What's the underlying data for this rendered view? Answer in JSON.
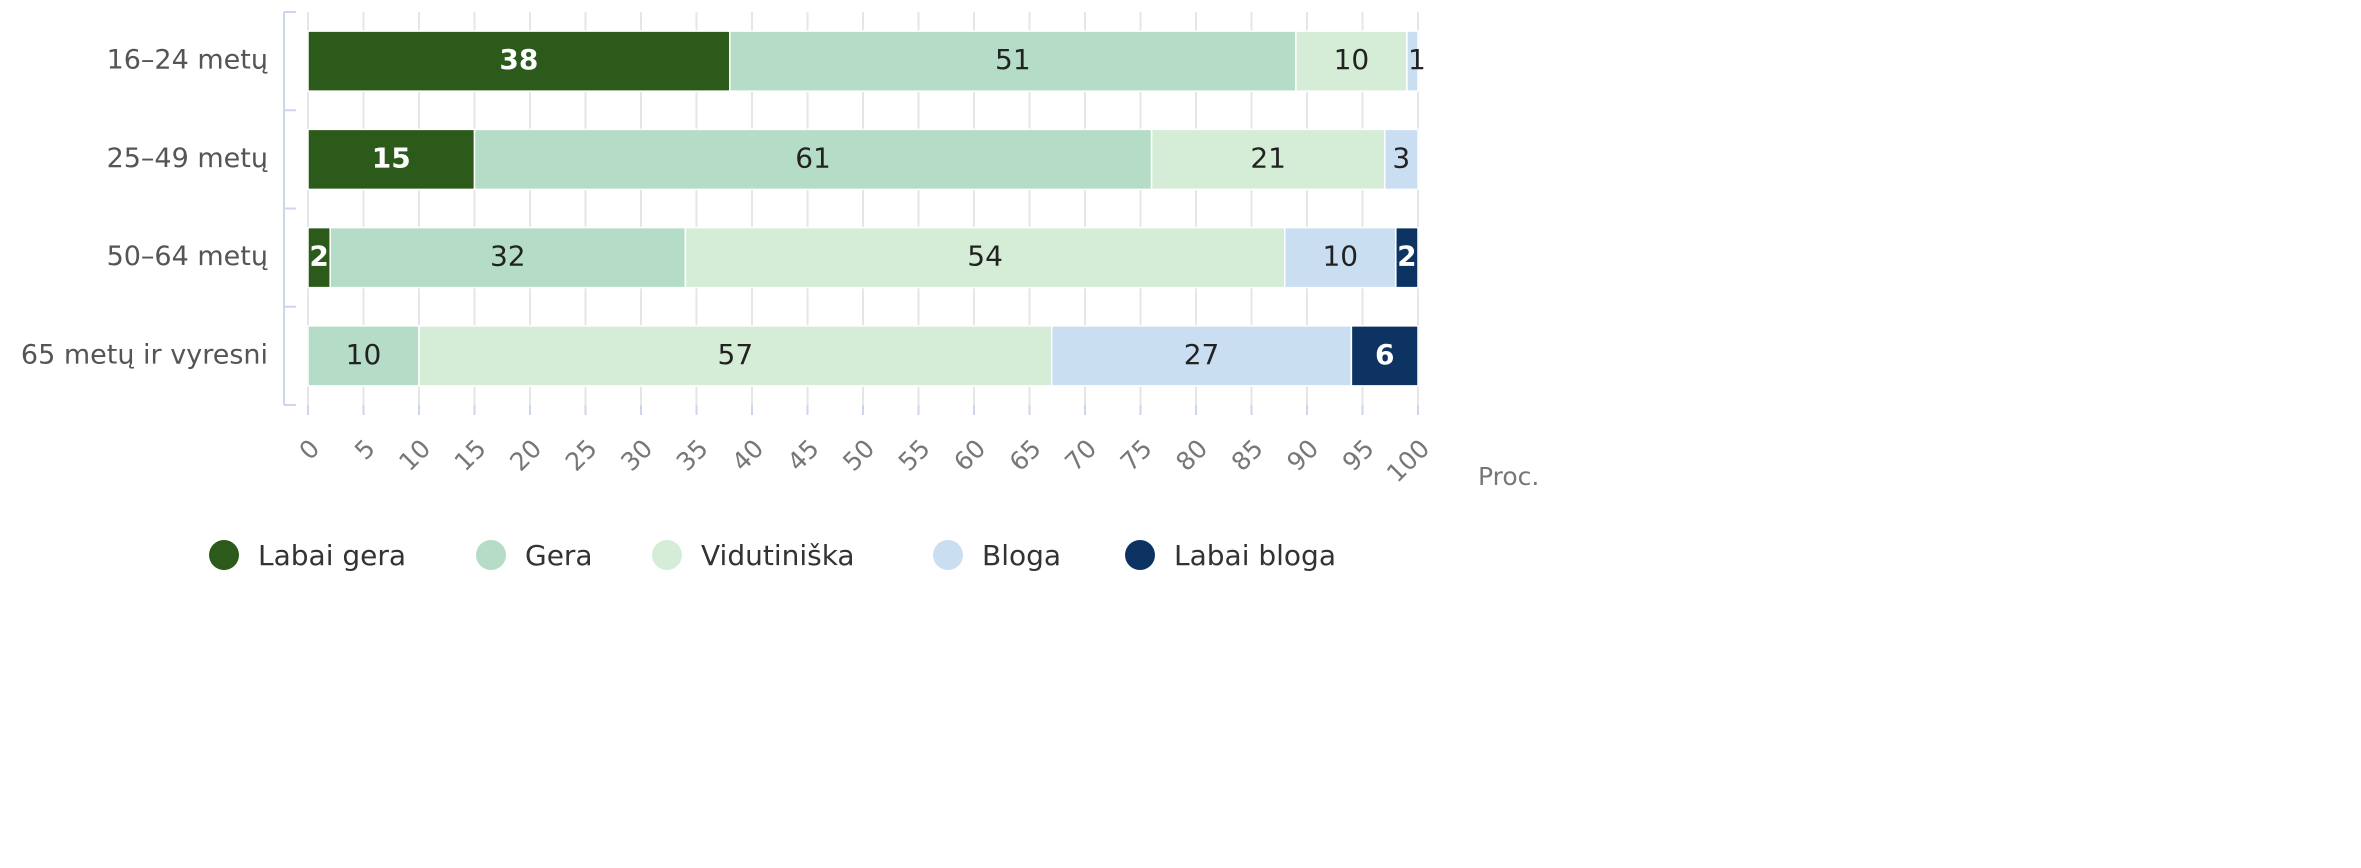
{
  "chart_data": {
    "type": "stacked-bar-horizontal",
    "categories": [
      "16–24 metų",
      "25–49 metų",
      "50–64 metų",
      "65 metų ir vyresni"
    ],
    "series": [
      {
        "name": "Labai gera",
        "color": "#2b5a1a",
        "values": [
          38,
          15,
          2,
          0
        ]
      },
      {
        "name": "Gera",
        "color": "#b4dcc6",
        "values": [
          51,
          61,
          32,
          10
        ]
      },
      {
        "name": "Vidutiniška",
        "color": "#d5edd6",
        "values": [
          10,
          21,
          54,
          57
        ]
      },
      {
        "name": "Bloga",
        "color": "#cadef1",
        "values": [
          1,
          3,
          10,
          27
        ]
      },
      {
        "name": "Labai bloga",
        "color": "#0c3361",
        "values": [
          null,
          null,
          2,
          6
        ]
      }
    ],
    "xlabel": "Proc.",
    "xlim": [
      0,
      100
    ],
    "xticks": [
      0,
      5,
      10,
      15,
      20,
      25,
      30,
      35,
      40,
      45,
      50,
      55,
      60,
      65,
      70,
      75,
      80,
      85,
      90,
      95,
      100
    ],
    "grid": true,
    "legend": "bottom"
  }
}
